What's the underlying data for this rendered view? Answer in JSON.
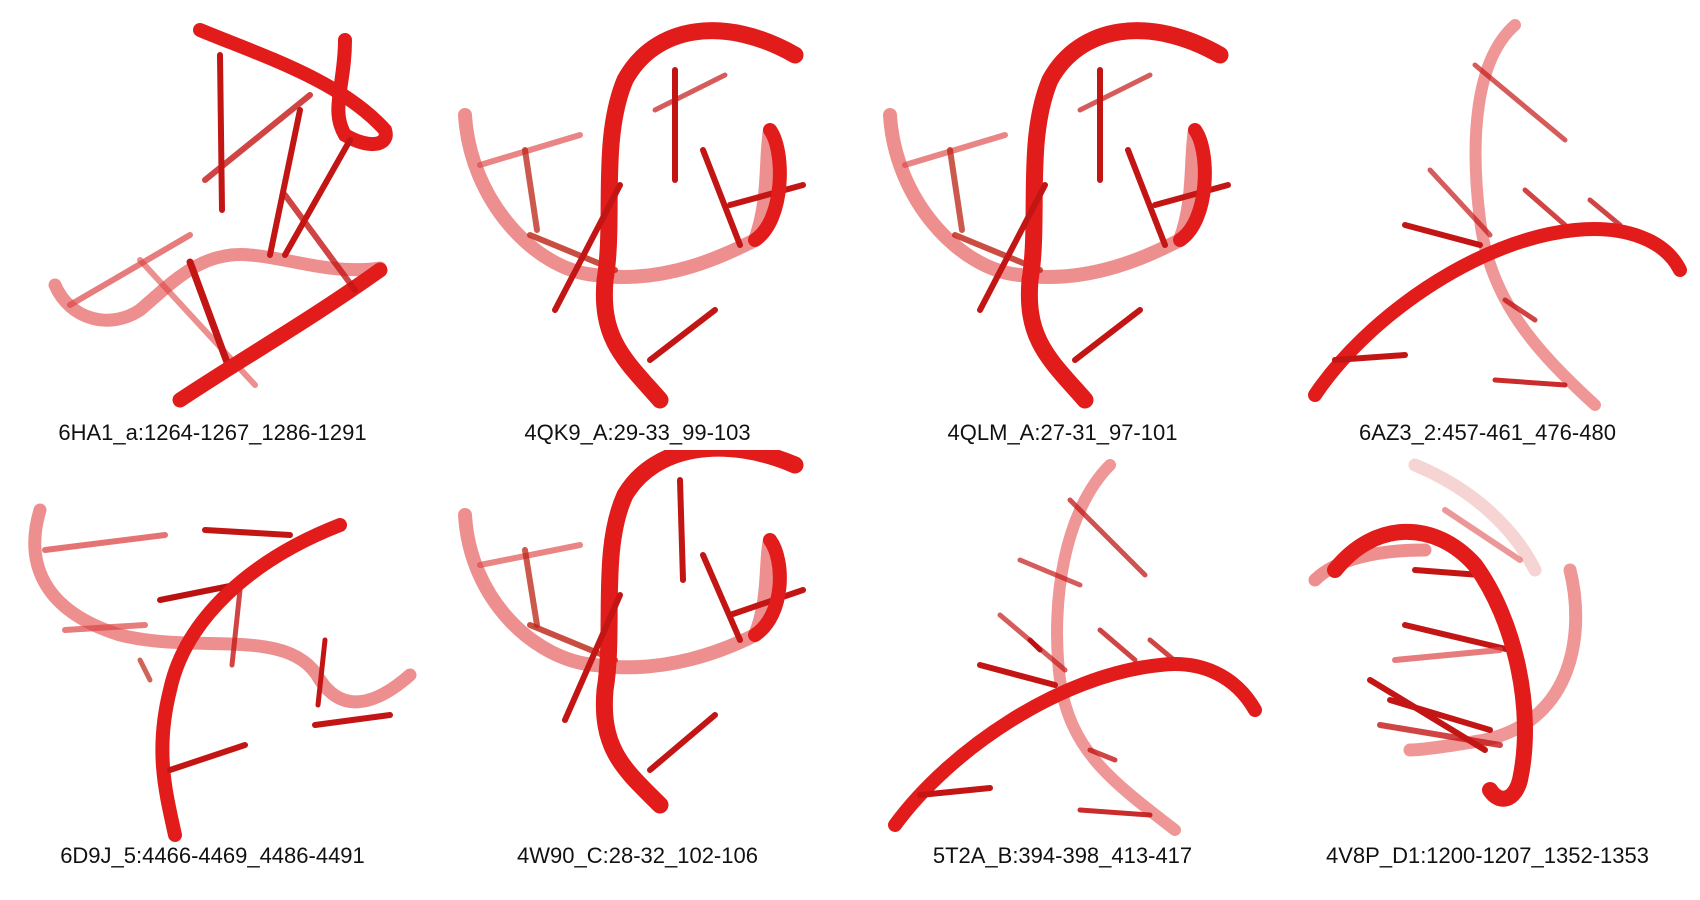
{
  "panels": [
    {
      "label": "6HA1_a:1264-1267_1286-1291"
    },
    {
      "label": "4QK9_A:29-33_99-103"
    },
    {
      "label": "4QLM_A:27-31_97-101"
    },
    {
      "label": "6AZ3_2:457-461_476-480"
    },
    {
      "label": "6D9J_5:4466-4469_4486-4491"
    },
    {
      "label": "4W90_C:28-32_102-106"
    },
    {
      "label": "5T2A_B:394-398_413-417"
    },
    {
      "label": "4V8P_D1:1200-1207_1352-1353"
    }
  ],
  "colors": {
    "strand": "#e21b1b",
    "strand_back": "#e86a6a",
    "rung": "#c41515",
    "caption": "#111111"
  }
}
